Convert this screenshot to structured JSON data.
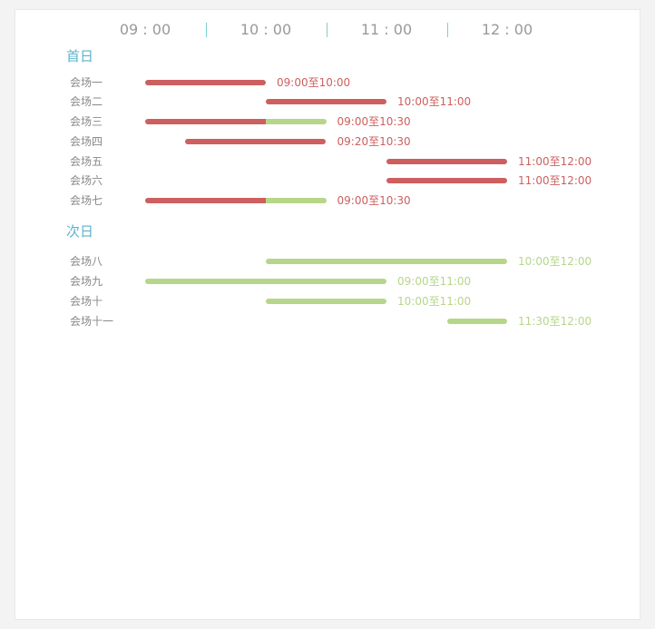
{
  "colors": {
    "accent": "#5bb3c9",
    "booked": "#cd5f5f",
    "available": "#b6d68a",
    "axis_text": "#999999",
    "label_text": "#888888"
  },
  "time_axis": {
    "ticks": [
      {
        "label": "09 : 00",
        "hour": 9
      },
      {
        "label": "10 : 00",
        "hour": 10
      },
      {
        "label": "11 : 00",
        "hour": 11
      },
      {
        "label": "12 : 00",
        "hour": 12
      }
    ]
  },
  "sections": [
    {
      "title": "首日",
      "rows": [
        {
          "label": "会场一",
          "range_text": "09:00至10:00",
          "text_color": "booked",
          "segments": [
            {
              "start": "09:00",
              "end": "10:00",
              "color": "booked"
            }
          ]
        },
        {
          "label": "会场二",
          "range_text": "10:00至11:00",
          "text_color": "booked",
          "segments": [
            {
              "start": "10:00",
              "end": "11:00",
              "color": "booked"
            }
          ]
        },
        {
          "label": "会场三",
          "range_text": "09:00至10:30",
          "text_color": "booked",
          "segments": [
            {
              "start": "09:00",
              "end": "10:00",
              "color": "booked"
            },
            {
              "start": "10:00",
              "end": "10:30",
              "color": "available"
            }
          ]
        },
        {
          "label": "会场四",
          "range_text": "09:20至10:30",
          "text_color": "booked",
          "segments": [
            {
              "start": "09:20",
              "end": "10:30",
              "color": "booked"
            }
          ]
        },
        {
          "label": "会场五",
          "range_text": "11:00至12:00",
          "text_color": "booked",
          "segments": [
            {
              "start": "11:00",
              "end": "12:00",
              "color": "booked"
            }
          ]
        },
        {
          "label": "会场六",
          "range_text": "11:00至12:00",
          "text_color": "booked",
          "segments": [
            {
              "start": "11:00",
              "end": "12:00",
              "color": "booked"
            }
          ]
        },
        {
          "label": "会场七",
          "range_text": "09:00至10:30",
          "text_color": "booked",
          "segments": [
            {
              "start": "09:00",
              "end": "10:00",
              "color": "booked"
            },
            {
              "start": "10:00",
              "end": "10:30",
              "color": "available"
            }
          ]
        }
      ]
    },
    {
      "title": "次日",
      "rows": [
        {
          "label": "会场八",
          "range_text": "10:00至12:00",
          "text_color": "available",
          "segments": [
            {
              "start": "10:00",
              "end": "12:00",
              "color": "available"
            }
          ]
        },
        {
          "label": "会场九",
          "range_text": "09:00至11:00",
          "text_color": "available",
          "segments": [
            {
              "start": "09:00",
              "end": "11:00",
              "color": "available"
            }
          ]
        },
        {
          "label": "会场十",
          "range_text": "10:00至11:00",
          "text_color": "available",
          "segments": [
            {
              "start": "10:00",
              "end": "11:00",
              "color": "available"
            }
          ]
        },
        {
          "label": "会场十一",
          "range_text": "11:30至12:00",
          "text_color": "available",
          "segments": [
            {
              "start": "11:30",
              "end": "12:00",
              "color": "available"
            }
          ]
        }
      ]
    }
  ]
}
